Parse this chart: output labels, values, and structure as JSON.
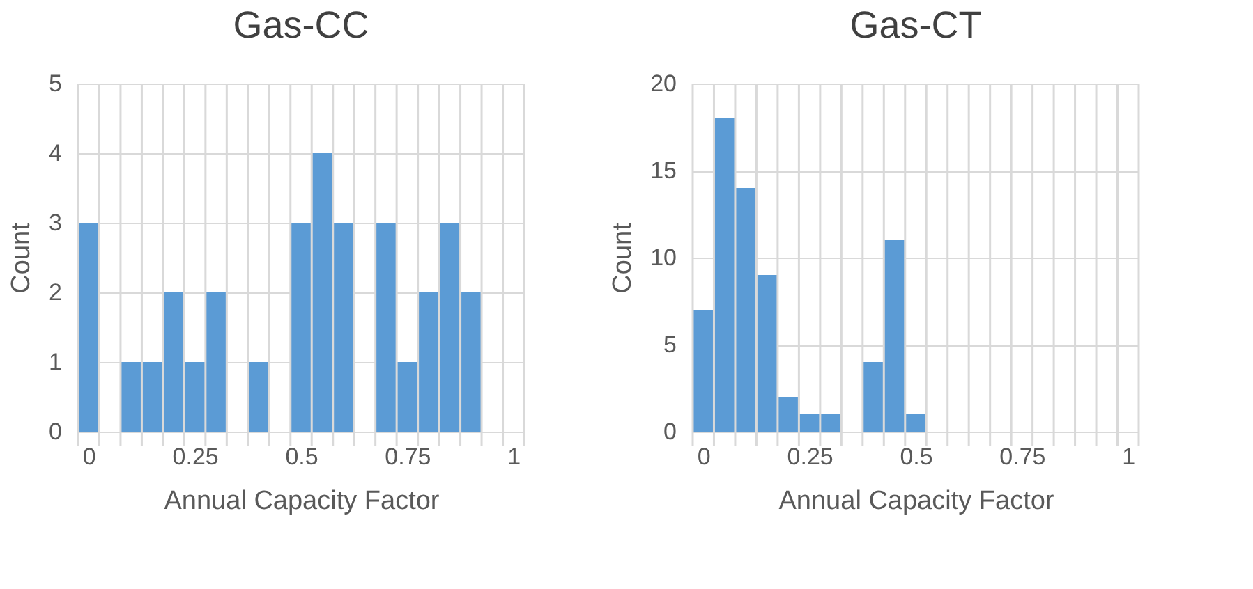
{
  "chart_data": [
    {
      "type": "histogram",
      "title": "Gas-CC",
      "xlabel": "Annual Capacity Factor",
      "ylabel": "Count",
      "color": "#5b9bd5",
      "bins": [
        -0.025,
        0.025,
        0.075,
        0.125,
        0.175,
        0.225,
        0.275,
        0.325,
        0.375,
        0.425,
        0.475,
        0.525,
        0.575,
        0.625,
        0.675,
        0.725,
        0.775,
        0.825,
        0.875,
        0.925,
        0.975,
        1.025
      ],
      "values": [
        3,
        0,
        1,
        1,
        2,
        1,
        2,
        0,
        1,
        0,
        3,
        4,
        3,
        0,
        3,
        1,
        2,
        3,
        2,
        0,
        0
      ],
      "xlim": [
        -0.025,
        1.025
      ],
      "xticks": [
        0,
        0.25,
        0.5,
        0.75,
        1
      ],
      "ylim": [
        0,
        5
      ],
      "yticks": [
        0,
        1,
        2,
        3,
        4,
        5
      ],
      "grid": true
    },
    {
      "type": "histogram",
      "title": "Gas-CT",
      "xlabel": "Annual Capacity Factor",
      "ylabel": "Count",
      "color": "#5b9bd5",
      "bins": [
        -0.025,
        0.025,
        0.075,
        0.125,
        0.175,
        0.225,
        0.275,
        0.325,
        0.375,
        0.425,
        0.475,
        0.525,
        0.575,
        0.625,
        0.675,
        0.725,
        0.775,
        0.825,
        0.875,
        0.925,
        0.975,
        1.025
      ],
      "values": [
        7,
        18,
        14,
        9,
        2,
        1,
        1,
        0,
        4,
        11,
        1,
        0,
        0,
        0,
        0,
        0,
        0,
        0,
        0,
        0,
        0
      ],
      "xlim": [
        -0.025,
        1.025
      ],
      "xticks": [
        0,
        0.25,
        0.5,
        0.75,
        1
      ],
      "ylim": [
        0,
        20
      ],
      "yticks": [
        0,
        5,
        10,
        15,
        20
      ],
      "grid": true
    }
  ]
}
